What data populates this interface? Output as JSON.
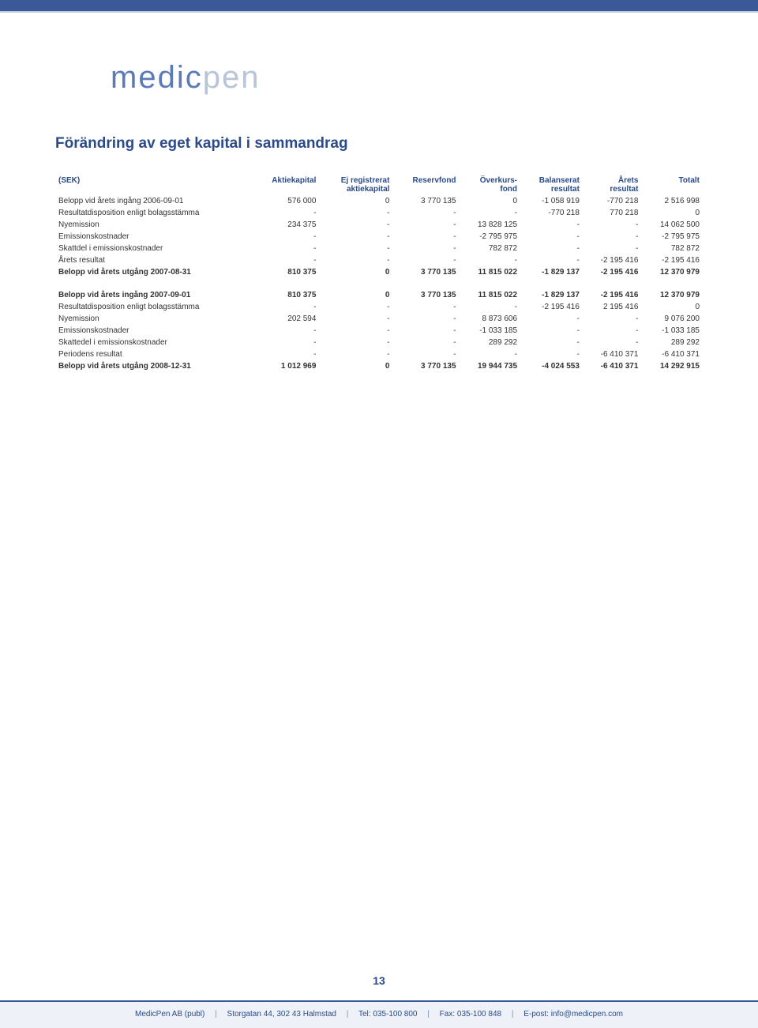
{
  "logo": {
    "part1": "medic",
    "part2": "pen"
  },
  "title": "Förändring av eget kapital i sammandrag",
  "table": {
    "headers": {
      "label": "(SEK)",
      "c1a": "Aktiekapital",
      "c1b": "",
      "c2a": "Ej registrerat",
      "c2b": "aktiekapital",
      "c3a": "Reservfond",
      "c3b": "",
      "c4a": "Överkurs-",
      "c4b": "fond",
      "c5a": "Balanserat",
      "c5b": "resultat",
      "c6a": "Årets",
      "c6b": "resultat",
      "c7a": "Totalt",
      "c7b": ""
    },
    "rows": [
      {
        "type": "data",
        "cells": [
          "Belopp vid årets ingång 2006-09-01",
          "576 000",
          "0",
          "3 770 135",
          "0",
          "-1 058 919",
          "-770 218",
          "2 516 998"
        ]
      },
      {
        "type": "data",
        "cells": [
          "Resultatdisposition enligt bolagsstämma",
          "-",
          "-",
          "-",
          "-",
          "-770 218",
          "770 218",
          "0"
        ]
      },
      {
        "type": "data",
        "cells": [
          "Nyemission",
          "234 375",
          "-",
          "-",
          "13 828 125",
          "-",
          "-",
          "14 062 500"
        ]
      },
      {
        "type": "data",
        "cells": [
          "Emissionskostnader",
          "-",
          "-",
          "-",
          "-2 795 975",
          "-",
          "-",
          "-2 795 975"
        ]
      },
      {
        "type": "data",
        "cells": [
          "Skattdel i emissionskostnader",
          "-",
          "-",
          "-",
          "782 872",
          "-",
          "-",
          "782 872"
        ]
      },
      {
        "type": "data",
        "cells": [
          "Årets resultat",
          "-",
          "-",
          "-",
          "-",
          "-",
          "-2 195 416",
          "-2 195 416"
        ]
      },
      {
        "type": "bold",
        "cells": [
          "Belopp vid årets utgång 2007-08-31",
          "810 375",
          "0",
          "3 770 135",
          "11 815 022",
          "-1 829 137",
          "-2 195 416",
          "12 370 979"
        ]
      },
      {
        "type": "spacer"
      },
      {
        "type": "bold",
        "cells": [
          "Belopp vid årets ingång 2007-09-01",
          "810 375",
          "0",
          "3 770 135",
          "11 815 022",
          "-1 829 137",
          "-2 195 416",
          "12 370 979"
        ]
      },
      {
        "type": "data",
        "cells": [
          "Resultatdisposition enligt bolagsstämma",
          "-",
          "-",
          "-",
          "-",
          "-2 195 416",
          "2 195 416",
          "0"
        ]
      },
      {
        "type": "data",
        "cells": [
          "Nyemission",
          "202 594",
          "-",
          "-",
          "8 873 606",
          "-",
          "-",
          "9 076 200"
        ]
      },
      {
        "type": "data",
        "cells": [
          "Emissionskostnader",
          "-",
          "-",
          "-",
          "-1 033 185",
          "-",
          "-",
          "-1 033 185"
        ]
      },
      {
        "type": "data",
        "cells": [
          "Skattedel i emissionskostnader",
          "-",
          "-",
          "-",
          "289 292",
          "-",
          "-",
          "289 292"
        ]
      },
      {
        "type": "data",
        "cells": [
          "Periodens resultat",
          "-",
          "-",
          "-",
          "-",
          "-",
          "-6 410 371",
          "-6 410 371"
        ]
      },
      {
        "type": "bold",
        "cells": [
          "Belopp vid årets utgång 2008-12-31",
          "1 012 969",
          "0",
          "3 770 135",
          "19 944 735",
          "-4 024 553",
          "-6 410 371",
          "14 292 915"
        ]
      }
    ]
  },
  "page_number": "13",
  "footer": {
    "company": "MedicPen AB (publ)",
    "address": "Storgatan 44, 302 43 Halmstad",
    "tel": "Tel: 035-100 800",
    "fax": "Fax: 035-100 848",
    "email": "E-post: info@medicpen.com",
    "sep": "|"
  },
  "colors": {
    "brand_blue": "#2a4a8a",
    "bar_blue": "#3b5998",
    "logo_light": "#b8c4d8",
    "footer_bg": "#eef2f8"
  },
  "typography": {
    "title_fontsize": 19,
    "table_fontsize": 10,
    "footer_fontsize": 10,
    "logo_fontsize": 40
  }
}
